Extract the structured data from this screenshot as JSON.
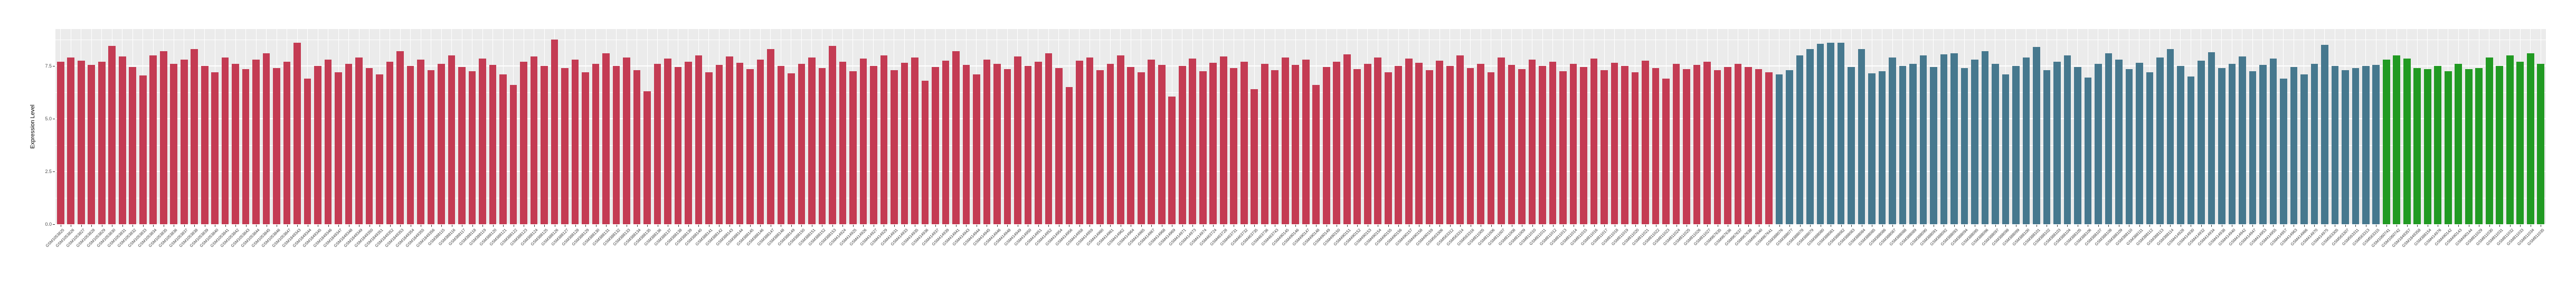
{
  "chart_data": {
    "type": "bar",
    "title": "",
    "xlabel": "",
    "ylabel": "Expression Level",
    "yticks": [
      0.0,
      2.5,
      5.0,
      7.5
    ],
    "minor_yticks": [
      1.25,
      3.75,
      6.25,
      8.75
    ],
    "ylim": [
      0,
      9.25
    ],
    "grid": "on",
    "legend": "none",
    "panel_background": "#ebebeb",
    "gridline_color": "#ffffff",
    "axis_text_color": "#4d4d4d",
    "groups": [
      {
        "name": "group-1-red",
        "start": 0,
        "end": 166,
        "color": "#c43b53"
      },
      {
        "name": "group-2-blue",
        "start": 167,
        "end": 225,
        "color": "#46788e"
      },
      {
        "name": "group-3-green",
        "start": 226,
        "end": 241,
        "color": "#219a22"
      }
    ],
    "categories": [
      "GSM1053825",
      "GSM1053826",
      "GSM1053827",
      "GSM1053828",
      "GSM1053829",
      "GSM1053830",
      "GSM1053831",
      "GSM1053832",
      "GSM1053833",
      "GSM1053834",
      "GSM1053835",
      "GSM1053836",
      "GSM1053837",
      "GSM1053838",
      "GSM1053839",
      "GSM1053840",
      "GSM1053841",
      "GSM1053842",
      "GSM1053843",
      "GSM1053844",
      "GSM1053845",
      "GSM1053846",
      "GSM1053847",
      "GSM1849343",
      "GSM1849344",
      "GSM1849345",
      "GSM1849346",
      "GSM1849347",
      "GSM1849348",
      "GSM1849349",
      "GSM1849350",
      "GSM1849351",
      "GSM1849352",
      "GSM1849353",
      "GSM1849354",
      "GSM1849355",
      "GSM1849356",
      "GSM388115",
      "GSM388116",
      "GSM388117",
      "GSM388118",
      "GSM388119",
      "GSM388120",
      "GSM388121",
      "GSM388122",
      "GSM388123",
      "GSM388124",
      "GSM388125",
      "GSM388126",
      "GSM388127",
      "GSM388128",
      "GSM388129",
      "GSM388130",
      "GSM388131",
      "GSM388132",
      "GSM388133",
      "GSM388134",
      "GSM388135",
      "GSM388136",
      "GSM388137",
      "GSM388138",
      "GSM388139",
      "GSM388140",
      "GSM388141",
      "GSM388142",
      "GSM388143",
      "GSM388144",
      "GSM388145",
      "GSM388146",
      "GSM388147",
      "GSM388148",
      "GSM388149",
      "GSM388150",
      "GSM388151",
      "GSM388152",
      "GSM388153",
      "GSM414924",
      "GSM414925",
      "GSM414926",
      "GSM414927",
      "GSM414929",
      "GSM414931",
      "GSM414933",
      "GSM414935",
      "GSM414936",
      "GSM414937",
      "GSM414939",
      "GSM414941",
      "GSM414943",
      "GSM414944",
      "GSM414945",
      "GSM414946",
      "GSM414948",
      "GSM414949",
      "GSM414950",
      "GSM414951",
      "GSM414952",
      "GSM414954",
      "GSM414956",
      "GSM414958",
      "GSM414959",
      "GSM414960",
      "GSM414961",
      "GSM414962",
      "GSM414964",
      "GSM414965",
      "GSM414967",
      "GSM414968",
      "GSM414969",
      "GSM414971",
      "GSM414973",
      "GSM414974",
      "GSM463724",
      "GSM463728",
      "GSM463731",
      "GSM463732",
      "GSM463735",
      "GSM463736",
      "GSM463743",
      "GSM490145",
      "GSM490146",
      "GSM490147",
      "GSM490148",
      "GSM490149",
      "GSM490150",
      "GSM490151",
      "GSM490152",
      "GSM490153",
      "GSM490154",
      "GSM490155",
      "GSM490156",
      "GSM490157",
      "GSM490158",
      "GSM490159",
      "GSM563306",
      "GSM563312",
      "GSM563314",
      "GSM563316",
      "GSM811005",
      "GSM811006",
      "GSM811007",
      "GSM811008",
      "GSM811009",
      "GSM811010",
      "GSM811011",
      "GSM811012",
      "GSM811013",
      "GSM811014",
      "GSM811015",
      "GSM811016",
      "GSM811017",
      "GSM811018",
      "GSM811019",
      "GSM811020",
      "GSM811021",
      "GSM811022",
      "GSM811023",
      "GSM811024",
      "GSM811025",
      "GSM811026",
      "GSM811027",
      "GSM967635",
      "GSM967636",
      "GSM967637",
      "GSM967638",
      "GSM967640",
      "GSM967641",
      "GSM388076",
      "GSM388077",
      "GSM388078",
      "GSM388079",
      "GSM388080",
      "GSM388081",
      "GSM388082",
      "GSM388083",
      "GSM388084",
      "GSM388085",
      "GSM388086",
      "GSM388087",
      "GSM388088",
      "GSM388089",
      "GSM388090",
      "GSM388091",
      "GSM388092",
      "GSM388093",
      "GSM388094",
      "GSM388095",
      "GSM388096",
      "GSM388097",
      "GSM388098",
      "GSM388099",
      "GSM388100",
      "GSM388101",
      "GSM388102",
      "GSM388103",
      "GSM388104",
      "GSM388105",
      "GSM388106",
      "GSM388107",
      "GSM388108",
      "GSM388109",
      "GSM388110",
      "GSM388111",
      "GSM388112",
      "GSM388113",
      "GSM388114",
      "GSM414928",
      "GSM414930",
      "GSM414932",
      "GSM414934",
      "GSM414938",
      "GSM414940",
      "GSM414942",
      "GSM414947",
      "GSM414953",
      "GSM414955",
      "GSM414957",
      "GSM414963",
      "GSM414966",
      "GSM414970",
      "GSM414975",
      "GSM563305",
      "GSM563307",
      "GSM563311",
      "GSM563313",
      "GSM563315",
      "GSM1060741",
      "GSM1060742",
      "GSM1849357",
      "GSM1849358",
      "GSM388154",
      "GSM414976",
      "GSM490142",
      "GSM490143",
      "GSM490144",
      "GSM811029",
      "GSM811030",
      "GSM811031",
      "GSM811032",
      "GSM811033",
      "GSM811034",
      "GSM811035"
    ],
    "values": [
      7.7,
      7.9,
      7.75,
      7.55,
      7.7,
      8.45,
      7.95,
      7.45,
      7.05,
      8.0,
      8.2,
      7.6,
      7.8,
      8.3,
      7.5,
      7.2,
      7.9,
      7.6,
      7.35,
      7.8,
      8.1,
      7.4,
      7.7,
      8.6,
      6.9,
      7.5,
      7.8,
      7.2,
      7.6,
      7.9,
      7.4,
      7.1,
      7.7,
      8.2,
      7.5,
      7.8,
      7.3,
      7.6,
      8.0,
      7.45,
      7.25,
      7.85,
      7.55,
      7.1,
      6.6,
      7.7,
      7.95,
      7.5,
      8.75,
      7.4,
      7.8,
      7.2,
      7.6,
      8.1,
      7.5,
      7.9,
      7.3,
      6.3,
      7.6,
      7.85,
      7.45,
      7.7,
      8.0,
      7.2,
      7.55,
      7.95,
      7.65,
      7.35,
      7.8,
      8.3,
      7.5,
      7.15,
      7.6,
      7.9,
      7.4,
      8.45,
      7.7,
      7.25,
      7.85,
      7.5,
      8.0,
      7.3,
      7.65,
      7.9,
      6.8,
      7.45,
      7.75,
      8.2,
      7.55,
      7.1,
      7.8,
      7.6,
      7.35,
      7.95,
      7.5,
      7.7,
      8.1,
      7.4,
      6.5,
      7.75,
      7.9,
      7.3,
      7.6,
      8.0,
      7.45,
      7.2,
      7.8,
      7.55,
      6.05,
      7.5,
      7.85,
      7.25,
      7.65,
      7.95,
      7.4,
      7.7,
      6.4,
      7.6,
      7.3,
      7.9,
      7.55,
      7.8,
      6.6,
      7.45,
      7.7,
      8.05,
      7.35,
      7.6,
      7.9,
      7.2,
      7.5,
      7.85,
      7.65,
      7.3,
      7.75,
      7.5,
      8.0,
      7.4,
      7.6,
      7.2,
      7.9,
      7.55,
      7.35,
      7.8,
      7.5,
      7.7,
      7.25,
      7.6,
      7.45,
      7.85,
      7.3,
      7.65,
      7.5,
      7.2,
      7.75,
      7.4,
      6.9,
      7.6,
      7.35,
      7.55,
      7.7,
      7.3,
      7.45,
      7.6,
      7.45,
      7.35,
      7.2,
      7.1,
      7.3,
      8.0,
      8.3,
      8.55,
      8.6,
      8.6,
      7.45,
      8.3,
      7.15,
      7.25,
      7.9,
      7.5,
      7.6,
      8.0,
      7.45,
      8.05,
      8.1,
      7.4,
      7.8,
      8.2,
      7.6,
      7.1,
      7.5,
      7.9,
      8.4,
      7.3,
      7.7,
      8.0,
      7.45,
      6.95,
      7.6,
      8.1,
      7.8,
      7.35,
      7.65,
      7.2,
      7.9,
      8.3,
      7.5,
      7.0,
      7.75,
      8.15,
      7.4,
      7.6,
      7.95,
      7.25,
      7.55,
      7.85,
      6.9,
      7.45,
      7.1,
      7.6,
      8.5,
      7.5,
      7.3,
      7.4,
      7.5,
      7.55,
      7.8,
      8.0,
      7.85,
      7.4,
      7.35,
      7.5,
      7.25,
      7.6,
      7.35,
      7.4,
      7.9,
      7.5,
      8.0,
      7.7,
      8.1,
      7.6
    ]
  }
}
